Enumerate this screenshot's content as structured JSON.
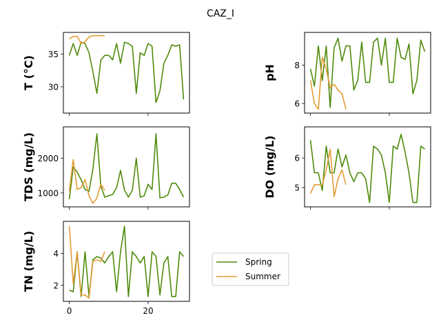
{
  "figure": {
    "title": "CAZ_I"
  },
  "legend": {
    "placement": "center-right",
    "entries": [
      {
        "name": "Spring",
        "color": "#4e8a0a"
      },
      {
        "name": "Summer",
        "color": "#e49b33"
      }
    ]
  },
  "chart_data": [
    {
      "type": "line",
      "ylabel": "T  (°C)",
      "xlim": [
        -1.5,
        30.5
      ],
      "ylim": [
        26.0,
        38.3
      ],
      "yticks": [
        30,
        35
      ],
      "xticks": [
        0,
        20
      ],
      "xticks_labeled": false,
      "series": [
        {
          "name": "Spring",
          "color": "#4e8a0a",
          "x": [
            0,
            1,
            2,
            3,
            4,
            5,
            6,
            7,
            8,
            9,
            10,
            11,
            12,
            13,
            14,
            15,
            16,
            17,
            18,
            19,
            20,
            21,
            22,
            23,
            24,
            25,
            26,
            27,
            28,
            29
          ],
          "values": [
            34.8,
            36.6,
            34.8,
            36.8,
            36.6,
            35.2,
            32.3,
            29.0,
            34.1,
            34.8,
            34.8,
            34.1,
            36.6,
            33.6,
            36.8,
            36.6,
            36.2,
            29.0,
            35.2,
            34.8,
            36.6,
            36.2,
            27.6,
            29.4,
            33.6,
            34.8,
            36.4,
            36.2,
            36.4,
            28.1
          ]
        },
        {
          "name": "Summer",
          "color": "#e49b33",
          "x": [
            0,
            1,
            2,
            3,
            4,
            5,
            6,
            7,
            8,
            9
          ],
          "values": [
            37.3,
            37.7,
            37.7,
            36.6,
            36.9,
            37.6,
            37.8,
            37.8,
            37.8,
            37.8
          ]
        }
      ]
    },
    {
      "type": "line",
      "ylabel": "pH",
      "xlim": [
        -1.5,
        30.5
      ],
      "ylim": [
        5.5,
        9.7
      ],
      "yticks": [
        6,
        8
      ],
      "xticks": [
        0,
        20
      ],
      "xticks_labeled": false,
      "series": [
        {
          "name": "Spring",
          "color": "#4e8a0a",
          "x": [
            0,
            1,
            2,
            3,
            4,
            5,
            6,
            7,
            8,
            9,
            10,
            11,
            12,
            13,
            14,
            15,
            16,
            17,
            18,
            19,
            20,
            21,
            22,
            23,
            24,
            25,
            26,
            27,
            28,
            29
          ],
          "values": [
            7.8,
            6.9,
            9.0,
            7.2,
            9.0,
            5.8,
            8.9,
            9.4,
            8.2,
            9.0,
            9.0,
            6.7,
            7.2,
            9.2,
            7.1,
            7.1,
            9.2,
            9.4,
            8.0,
            9.4,
            7.1,
            7.1,
            9.4,
            8.4,
            8.3,
            9.1,
            6.5,
            7.2,
            9.3,
            8.7
          ]
        },
        {
          "name": "Summer",
          "color": "#e49b33",
          "x": [
            0,
            1,
            2,
            3,
            4,
            5,
            6,
            7,
            8,
            9
          ],
          "values": [
            7.2,
            6.0,
            5.7,
            8.4,
            7.8,
            6.8,
            7.0,
            6.7,
            6.5,
            5.7
          ]
        }
      ]
    },
    {
      "type": "line",
      "ylabel": "TDS (mg/L)",
      "xlim": [
        -1.5,
        30.5
      ],
      "ylim": [
        600,
        2900
      ],
      "yticks": [
        1000,
        2000
      ],
      "xticks": [
        0,
        20
      ],
      "xticks_labeled": false,
      "series": [
        {
          "name": "Spring",
          "color": "#4e8a0a",
          "x": [
            0,
            1,
            2,
            3,
            4,
            5,
            6,
            7,
            8,
            9,
            10,
            11,
            12,
            13,
            14,
            15,
            16,
            17,
            18,
            19,
            20,
            21,
            22,
            23,
            24,
            25,
            26,
            27,
            28,
            29
          ],
          "values": [
            820,
            1750,
            1600,
            1380,
            1100,
            1050,
            1700,
            2700,
            1200,
            880,
            920,
            960,
            1150,
            1650,
            1080,
            880,
            1080,
            2000,
            880,
            920,
            1250,
            1100,
            2700,
            860,
            880,
            940,
            1280,
            1280,
            1100,
            880
          ]
        },
        {
          "name": "Summer",
          "color": "#e49b33",
          "x": [
            0,
            1,
            2,
            3,
            4,
            5,
            6,
            7,
            8,
            9
          ],
          "values": [
            1050,
            1960,
            1100,
            1150,
            1390,
            920,
            700,
            850,
            1250,
            1080
          ]
        }
      ]
    },
    {
      "type": "line",
      "ylabel": "DO (mg/L)",
      "xlim": [
        -1.5,
        30.5
      ],
      "ylim": [
        4.35,
        7.05
      ],
      "yticks": [
        5,
        6
      ],
      "xticks": [
        0,
        20
      ],
      "xticks_labeled": false,
      "series": [
        {
          "name": "Spring",
          "color": "#4e8a0a",
          "x": [
            0,
            1,
            2,
            3,
            4,
            5,
            6,
            7,
            8,
            9,
            10,
            11,
            12,
            13,
            14,
            15,
            16,
            17,
            18,
            19,
            20,
            21,
            22,
            23,
            24,
            25,
            26,
            27,
            28,
            29
          ],
          "values": [
            6.6,
            5.5,
            5.5,
            4.9,
            6.4,
            5.5,
            5.5,
            6.3,
            5.7,
            6.1,
            5.5,
            5.2,
            5.5,
            5.5,
            5.3,
            4.5,
            6.4,
            6.3,
            6.1,
            5.5,
            4.5,
            6.4,
            6.3,
            6.8,
            6.2,
            5.5,
            4.5,
            4.5,
            6.4,
            6.3
          ]
        },
        {
          "name": "Summer",
          "color": "#e49b33",
          "x": [
            0,
            1,
            2,
            3,
            4,
            5,
            6,
            7,
            8,
            9
          ],
          "values": [
            4.8,
            5.1,
            5.1,
            5.1,
            5.6,
            6.3,
            4.7,
            5.3,
            5.6,
            5.1
          ]
        }
      ]
    },
    {
      "type": "line",
      "ylabel": "TN (mg/L)",
      "xlim": [
        -1.5,
        30.5
      ],
      "ylim": [
        1.0,
        6.0
      ],
      "yticks": [
        2,
        4
      ],
      "xticks": [
        0,
        20
      ],
      "xticklabels": [
        "0",
        "20"
      ],
      "series": [
        {
          "name": "Spring",
          "color": "#4e8a0a",
          "x": [
            0,
            1,
            2,
            3,
            4,
            5,
            6,
            7,
            8,
            9,
            10,
            11,
            12,
            13,
            14,
            15,
            16,
            17,
            18,
            19,
            20,
            21,
            22,
            23,
            24,
            25,
            26,
            27,
            28,
            29
          ],
          "values": [
            1.7,
            1.6,
            4.1,
            1.3,
            4.1,
            1.3,
            3.6,
            3.8,
            3.7,
            3.4,
            3.8,
            4.1,
            1.6,
            4.1,
            5.7,
            1.3,
            4.1,
            3.8,
            3.4,
            3.8,
            1.3,
            4.1,
            3.8,
            1.4,
            3.4,
            3.8,
            1.3,
            1.3,
            4.1,
            3.8
          ]
        },
        {
          "name": "Summer",
          "color": "#e49b33",
          "x": [
            0,
            1,
            2,
            3,
            4,
            5,
            6,
            7,
            8,
            9
          ],
          "values": [
            5.7,
            2.1,
            4.1,
            1.4,
            1.4,
            1.2,
            3.5,
            3.6,
            3.5,
            4.1
          ]
        }
      ]
    }
  ]
}
